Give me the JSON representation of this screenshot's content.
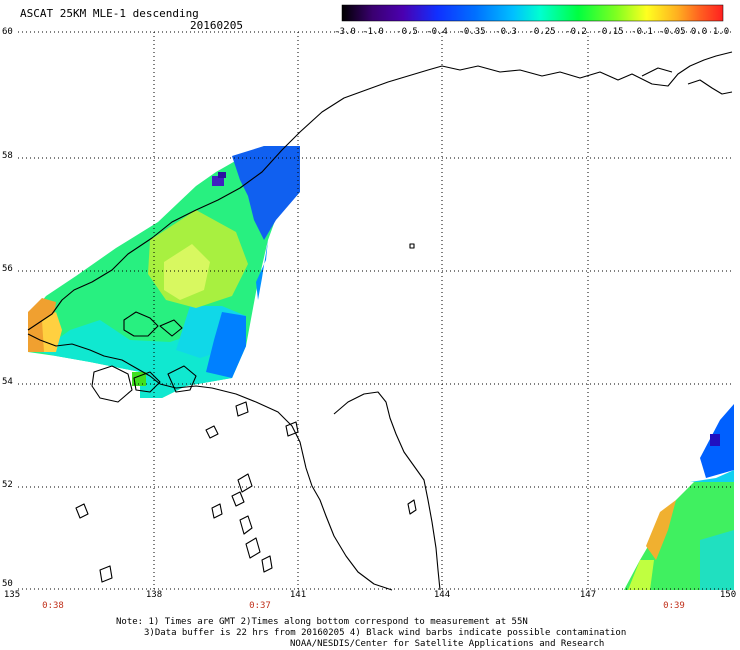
{
  "title": "ASCAT 25KM MLE-1 descending",
  "date": "20160205",
  "colorbar": {
    "labels": [
      "-3.0",
      "-1.0",
      "-0.5",
      "-0.4",
      "-0.35",
      "-0.3",
      "-0.25",
      "-0.2",
      "-0.15",
      "-0.1",
      "-0.05",
      "0.0",
      "1.0"
    ]
  },
  "latitude_labels": [
    "60",
    "58",
    "56",
    "54",
    "52",
    "50"
  ],
  "longitude_labels": [
    "135",
    "138",
    "141",
    "144",
    "147",
    "150"
  ],
  "pass_times": [
    "0:38",
    "0:37",
    "0:39"
  ],
  "notes": {
    "line1": "Note: 1) Times are GMT 2)Times along bottom correspond to measurement at 55N",
    "line2": "3)Data buffer is 22 hrs from 20160205 4) Black wind barbs indicate possible contamination",
    "line3": "NOAA/NESDIS/Center for Satellite Applications and Research"
  }
}
